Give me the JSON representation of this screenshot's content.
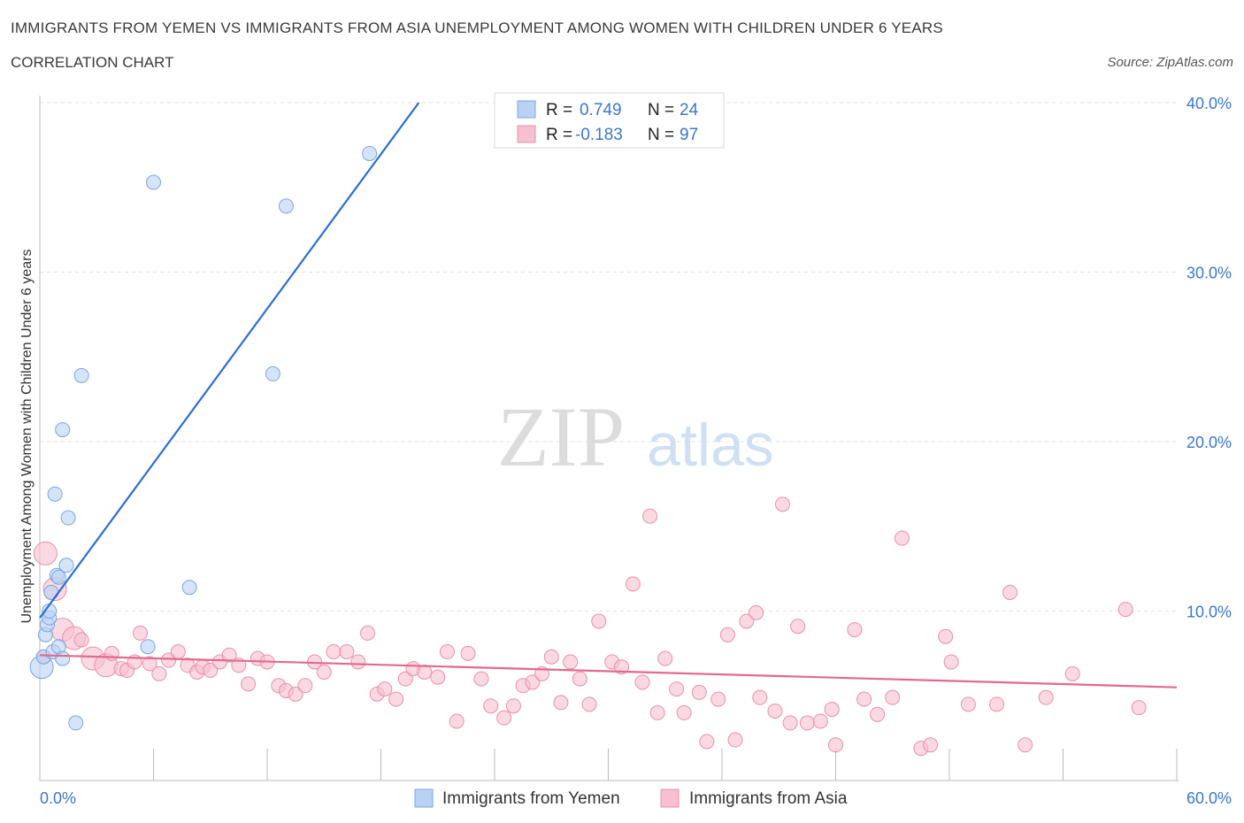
{
  "title": "IMMIGRANTS FROM YEMEN VS IMMIGRANTS FROM ASIA UNEMPLOYMENT AMONG WOMEN WITH CHILDREN UNDER 6 YEARS",
  "subtitle": "CORRELATION CHART",
  "source": "Source: ZipAtlas.com",
  "watermark": {
    "zip": "ZIP",
    "atlas": "atlas"
  },
  "colors": {
    "yemen_fill": "#b9d2f3",
    "yemen_stroke": "#7aa6e0",
    "yemen_line": "#2a6fcf",
    "asia_fill": "#f6c0d1",
    "asia_stroke": "#ea8fab",
    "asia_line": "#e2698f",
    "axis_label": "#3b78c9",
    "grid": "#e3e3e3"
  },
  "legend": {
    "r_label": "R =",
    "n_label": "N =",
    "rows": [
      {
        "r": "0.749",
        "n": "24"
      },
      {
        "r": "-0.183",
        "n": "97"
      }
    ]
  },
  "chart_data": {
    "type": "scatter",
    "xlabel": "",
    "ylabel": "Unemployment Among Women with Children Under 6 years",
    "xlim": [
      0,
      60
    ],
    "ylim": [
      0,
      40
    ],
    "x_tick_labels": [
      "0.0%",
      "60.0%"
    ],
    "y_ticks": [
      10,
      20,
      30,
      40
    ],
    "y_tick_labels": [
      "10.0%",
      "20.0%",
      "30.0%",
      "40.0%"
    ],
    "grid": "horizontal dashed",
    "legend_position": "bottom-center",
    "series": [
      {
        "name": "Immigrants from Yemen",
        "trend": {
          "x": [
            0,
            20
          ],
          "y": [
            9.6,
            40.0
          ]
        },
        "points": [
          {
            "x": 0.1,
            "y": 6.7,
            "s": 2
          },
          {
            "x": 0.2,
            "y": 7.3,
            "s": 1
          },
          {
            "x": 0.3,
            "y": 8.6,
            "s": 1
          },
          {
            "x": 0.4,
            "y": 9.2,
            "s": 1
          },
          {
            "x": 0.5,
            "y": 9.6,
            "s": 1
          },
          {
            "x": 0.5,
            "y": 10.0,
            "s": 1
          },
          {
            "x": 0.6,
            "y": 11.1,
            "s": 1
          },
          {
            "x": 0.7,
            "y": 7.6,
            "s": 1
          },
          {
            "x": 0.8,
            "y": 16.9,
            "s": 1
          },
          {
            "x": 0.9,
            "y": 12.1,
            "s": 1
          },
          {
            "x": 1.0,
            "y": 7.9,
            "s": 1
          },
          {
            "x": 1.0,
            "y": 12.0,
            "s": 1
          },
          {
            "x": 1.2,
            "y": 7.2,
            "s": 1
          },
          {
            "x": 1.2,
            "y": 20.7,
            "s": 1
          },
          {
            "x": 1.4,
            "y": 12.7,
            "s": 1
          },
          {
            "x": 1.5,
            "y": 15.5,
            "s": 1
          },
          {
            "x": 1.9,
            "y": 3.4,
            "s": 1
          },
          {
            "x": 2.2,
            "y": 23.9,
            "s": 1
          },
          {
            "x": 5.7,
            "y": 7.9,
            "s": 1
          },
          {
            "x": 6.0,
            "y": 35.3,
            "s": 1
          },
          {
            "x": 7.9,
            "y": 11.4,
            "s": 1
          },
          {
            "x": 12.3,
            "y": 24.0,
            "s": 1
          },
          {
            "x": 13.0,
            "y": 33.9,
            "s": 1
          },
          {
            "x": 17.4,
            "y": 37.0,
            "s": 1
          }
        ]
      },
      {
        "name": "Immigrants from Asia",
        "trend": {
          "x": [
            0,
            60
          ],
          "y": [
            7.4,
            5.5
          ]
        },
        "points": [
          {
            "x": 0.2,
            "y": 7.3,
            "s": 1
          },
          {
            "x": 0.3,
            "y": 13.4,
            "s": 2
          },
          {
            "x": 0.8,
            "y": 11.3,
            "s": 2
          },
          {
            "x": 1.2,
            "y": 8.9,
            "s": 2
          },
          {
            "x": 1.8,
            "y": 8.4,
            "s": 2
          },
          {
            "x": 2.2,
            "y": 8.3,
            "s": 1
          },
          {
            "x": 2.8,
            "y": 7.2,
            "s": 2
          },
          {
            "x": 3.5,
            "y": 6.8,
            "s": 2
          },
          {
            "x": 3.8,
            "y": 7.5,
            "s": 1
          },
          {
            "x": 4.3,
            "y": 6.6,
            "s": 1
          },
          {
            "x": 4.6,
            "y": 6.5,
            "s": 1
          },
          {
            "x": 5.0,
            "y": 7.0,
            "s": 1
          },
          {
            "x": 5.3,
            "y": 8.7,
            "s": 1
          },
          {
            "x": 5.8,
            "y": 6.9,
            "s": 1
          },
          {
            "x": 6.3,
            "y": 6.3,
            "s": 1
          },
          {
            "x": 6.8,
            "y": 7.1,
            "s": 1
          },
          {
            "x": 7.3,
            "y": 7.6,
            "s": 1
          },
          {
            "x": 7.8,
            "y": 6.8,
            "s": 1
          },
          {
            "x": 8.3,
            "y": 6.4,
            "s": 1
          },
          {
            "x": 8.6,
            "y": 6.7,
            "s": 1
          },
          {
            "x": 9.0,
            "y": 6.5,
            "s": 1
          },
          {
            "x": 9.5,
            "y": 7.0,
            "s": 1
          },
          {
            "x": 10.0,
            "y": 7.4,
            "s": 1
          },
          {
            "x": 10.5,
            "y": 6.8,
            "s": 1
          },
          {
            "x": 11.0,
            "y": 5.7,
            "s": 1
          },
          {
            "x": 11.5,
            "y": 7.2,
            "s": 1
          },
          {
            "x": 12.0,
            "y": 7.0,
            "s": 1
          },
          {
            "x": 12.6,
            "y": 5.6,
            "s": 1
          },
          {
            "x": 13.0,
            "y": 5.3,
            "s": 1
          },
          {
            "x": 13.5,
            "y": 5.1,
            "s": 1
          },
          {
            "x": 14.0,
            "y": 5.6,
            "s": 1
          },
          {
            "x": 14.5,
            "y": 7.0,
            "s": 1
          },
          {
            "x": 15.0,
            "y": 6.4,
            "s": 1
          },
          {
            "x": 15.5,
            "y": 7.6,
            "s": 1
          },
          {
            "x": 16.2,
            "y": 7.6,
            "s": 1
          },
          {
            "x": 16.8,
            "y": 7.0,
            "s": 1
          },
          {
            "x": 17.3,
            "y": 8.7,
            "s": 1
          },
          {
            "x": 17.8,
            "y": 5.1,
            "s": 1
          },
          {
            "x": 18.2,
            "y": 5.4,
            "s": 1
          },
          {
            "x": 18.8,
            "y": 4.8,
            "s": 1
          },
          {
            "x": 19.3,
            "y": 6.0,
            "s": 1
          },
          {
            "x": 19.7,
            "y": 6.6,
            "s": 1
          },
          {
            "x": 20.3,
            "y": 6.4,
            "s": 1
          },
          {
            "x": 21.0,
            "y": 6.1,
            "s": 1
          },
          {
            "x": 21.5,
            "y": 7.6,
            "s": 1
          },
          {
            "x": 22.0,
            "y": 3.5,
            "s": 1
          },
          {
            "x": 22.6,
            "y": 7.5,
            "s": 1
          },
          {
            "x": 23.3,
            "y": 6.0,
            "s": 1
          },
          {
            "x": 23.8,
            "y": 4.4,
            "s": 1
          },
          {
            "x": 24.5,
            "y": 3.7,
            "s": 1
          },
          {
            "x": 25.0,
            "y": 4.4,
            "s": 1
          },
          {
            "x": 25.5,
            "y": 5.6,
            "s": 1
          },
          {
            "x": 26.0,
            "y": 5.8,
            "s": 1
          },
          {
            "x": 26.5,
            "y": 6.3,
            "s": 1
          },
          {
            "x": 27.0,
            "y": 7.3,
            "s": 1
          },
          {
            "x": 27.5,
            "y": 4.6,
            "s": 1
          },
          {
            "x": 28.0,
            "y": 7.0,
            "s": 1
          },
          {
            "x": 28.5,
            "y": 6.0,
            "s": 1
          },
          {
            "x": 29.0,
            "y": 4.5,
            "s": 1
          },
          {
            "x": 29.5,
            "y": 9.4,
            "s": 1
          },
          {
            "x": 30.2,
            "y": 7.0,
            "s": 1
          },
          {
            "x": 30.7,
            "y": 6.7,
            "s": 1
          },
          {
            "x": 31.3,
            "y": 11.6,
            "s": 1
          },
          {
            "x": 31.8,
            "y": 5.8,
            "s": 1
          },
          {
            "x": 32.2,
            "y": 15.6,
            "s": 1
          },
          {
            "x": 32.6,
            "y": 4.0,
            "s": 1
          },
          {
            "x": 33.0,
            "y": 7.2,
            "s": 1
          },
          {
            "x": 33.6,
            "y": 5.4,
            "s": 1
          },
          {
            "x": 34.0,
            "y": 4.0,
            "s": 1
          },
          {
            "x": 34.8,
            "y": 5.2,
            "s": 1
          },
          {
            "x": 35.2,
            "y": 2.3,
            "s": 1
          },
          {
            "x": 35.8,
            "y": 4.8,
            "s": 1
          },
          {
            "x": 36.3,
            "y": 8.6,
            "s": 1
          },
          {
            "x": 36.7,
            "y": 2.4,
            "s": 1
          },
          {
            "x": 37.3,
            "y": 9.4,
            "s": 1
          },
          {
            "x": 37.8,
            "y": 9.9,
            "s": 1
          },
          {
            "x": 38.0,
            "y": 4.9,
            "s": 1
          },
          {
            "x": 38.8,
            "y": 4.1,
            "s": 1
          },
          {
            "x": 39.2,
            "y": 16.3,
            "s": 1
          },
          {
            "x": 39.6,
            "y": 3.4,
            "s": 1
          },
          {
            "x": 40.0,
            "y": 9.1,
            "s": 1
          },
          {
            "x": 40.5,
            "y": 3.4,
            "s": 1
          },
          {
            "x": 41.2,
            "y": 3.5,
            "s": 1
          },
          {
            "x": 41.8,
            "y": 4.2,
            "s": 1
          },
          {
            "x": 42.0,
            "y": 2.1,
            "s": 1
          },
          {
            "x": 43.0,
            "y": 8.9,
            "s": 1
          },
          {
            "x": 43.5,
            "y": 4.8,
            "s": 1
          },
          {
            "x": 44.2,
            "y": 3.9,
            "s": 1
          },
          {
            "x": 45.0,
            "y": 4.9,
            "s": 1
          },
          {
            "x": 45.5,
            "y": 14.3,
            "s": 1
          },
          {
            "x": 46.5,
            "y": 1.9,
            "s": 1
          },
          {
            "x": 47.0,
            "y": 2.1,
            "s": 1
          },
          {
            "x": 47.8,
            "y": 8.5,
            "s": 1
          },
          {
            "x": 48.1,
            "y": 7.0,
            "s": 1
          },
          {
            "x": 49.0,
            "y": 4.5,
            "s": 1
          },
          {
            "x": 50.5,
            "y": 4.5,
            "s": 1
          },
          {
            "x": 51.2,
            "y": 11.1,
            "s": 1
          },
          {
            "x": 52.0,
            "y": 2.1,
            "s": 1
          },
          {
            "x": 53.1,
            "y": 4.9,
            "s": 1
          },
          {
            "x": 54.5,
            "y": 6.3,
            "s": 1
          },
          {
            "x": 57.3,
            "y": 10.1,
            "s": 1
          },
          {
            "x": 58.0,
            "y": 4.3,
            "s": 1
          }
        ]
      }
    ]
  }
}
